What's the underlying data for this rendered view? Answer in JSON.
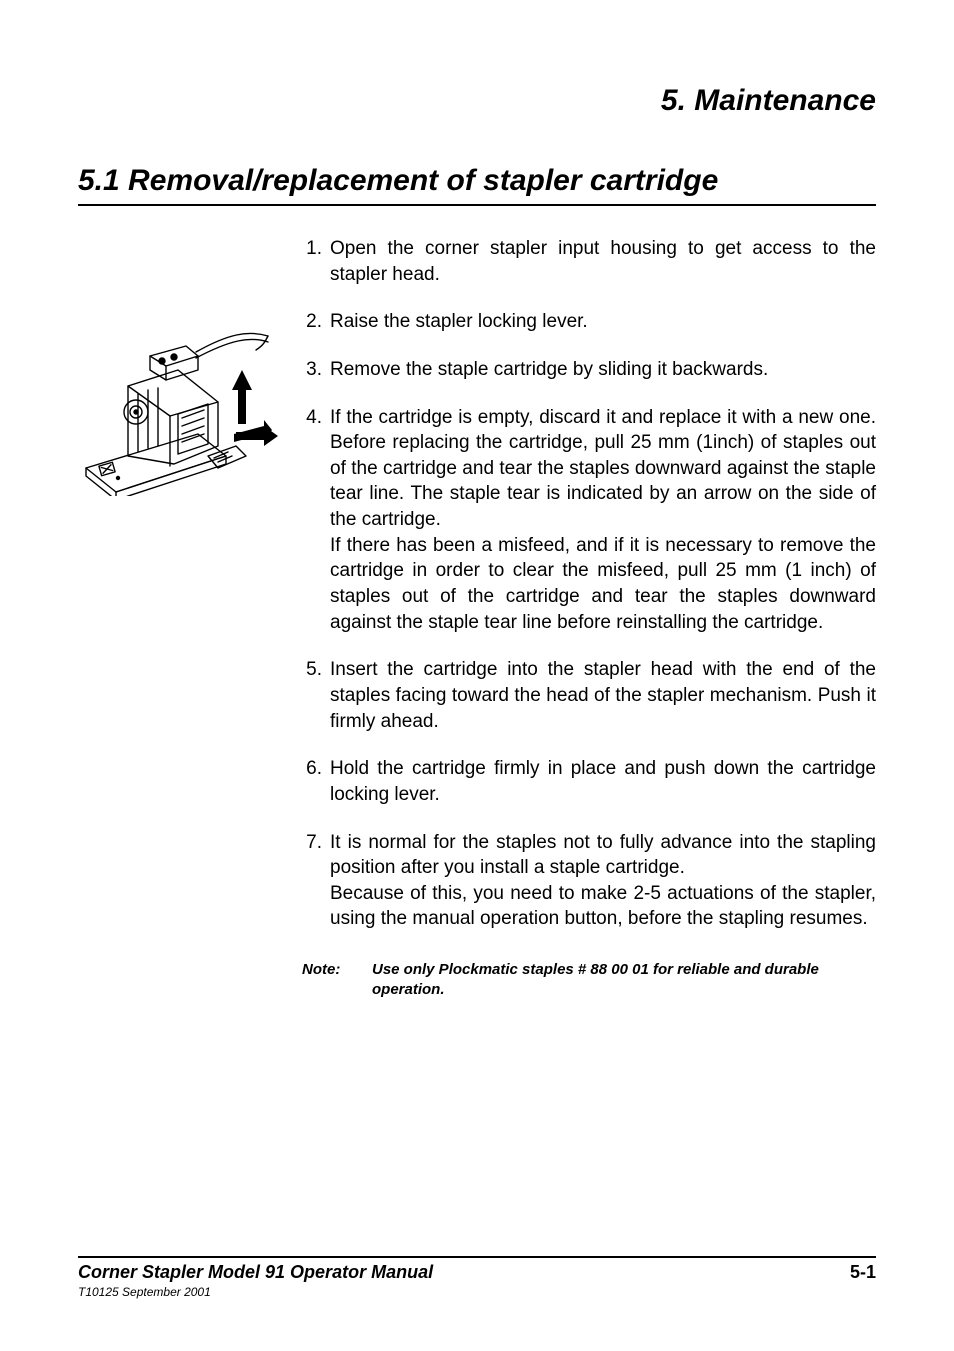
{
  "chapter_title": "5. Maintenance",
  "section_title": "5.1 Removal/replacement of stapler cartridge",
  "steps": [
    {
      "num": "1.",
      "text": "Open the corner stapler input housing to get access to the stapler head."
    },
    {
      "num": "2.",
      "text": "Raise the stapler locking lever."
    },
    {
      "num": "3.",
      "text": "Remove the staple cartridge by sliding it backwards."
    },
    {
      "num": "4.",
      "text": "If the cartridge is empty, discard it and replace it with a new one. Before replacing the cartridge, pull 25 mm (1inch) of staples out of the cartridge and tear the staples downward against the staple tear line. The staple tear is indicated by an arrow on the side of the cartridge.\nIf there has been a misfeed, and if it is necessary to remove the cartridge in order to clear the misfeed, pull 25 mm (1 inch) of staples out of the cartridge and tear the staples downward against the staple tear line before reinstalling the cartridge."
    },
    {
      "num": "5.",
      "text": "Insert the cartridge into the stapler head with the end of the staples facing toward the head of the stapler mechanism. Push it firmly ahead."
    },
    {
      "num": "6.",
      "text": "Hold the cartridge firmly in place and push down the cartridge locking lever."
    },
    {
      "num": "7.",
      "text": "It is normal for the staples not to fully advance into the stapling position after you install a staple cartridge.\nBecause of this, you need to make 2-5 actuations of the stapler, using the manual operation button, before the stapling resumes."
    }
  ],
  "note_label": "Note:",
  "note_text": "Use only Plockmatic staples # 88 00 01 for reliable and durable operation.",
  "footer_main": "Corner Stapler Model 91 Operator Manual",
  "footer_page": "5-1",
  "footer_sub": "T10125 September 2001",
  "figure_name": "stapler-cartridge-diagram"
}
